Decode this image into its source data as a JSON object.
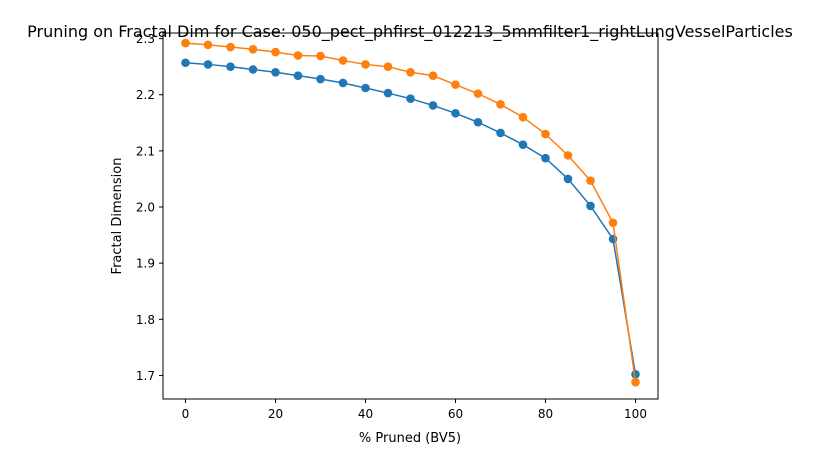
{
  "chart_data": {
    "type": "line",
    "title": "Pruning on Fractal Dim for Case: 050_pect_phfirst_012213_5mmfilter1_rightLungVesselParticles",
    "xlabel": "% Pruned (BV5)",
    "ylabel": "Fractal Dimension",
    "xlim": [
      -5,
      105
    ],
    "ylim": [
      1.658,
      2.31
    ],
    "xticks": [
      0,
      20,
      40,
      60,
      80,
      100
    ],
    "yticks": [
      1.7,
      1.8,
      1.9,
      2.0,
      2.1,
      2.2,
      2.3
    ],
    "x": [
      0,
      5,
      10,
      15,
      20,
      25,
      30,
      35,
      40,
      45,
      50,
      55,
      60,
      65,
      70,
      75,
      80,
      85,
      90,
      95,
      100
    ],
    "series": [
      {
        "color": "#1f77b4",
        "values": [
          2.257,
          2.254,
          2.25,
          2.245,
          2.24,
          2.234,
          2.228,
          2.221,
          2.212,
          2.203,
          2.193,
          2.181,
          2.167,
          2.151,
          2.132,
          2.111,
          2.087,
          2.05,
          2.002,
          1.943,
          1.702
        ]
      },
      {
        "color": "#ff7f0e",
        "values": [
          2.292,
          2.289,
          2.285,
          2.281,
          2.276,
          2.27,
          2.269,
          2.261,
          2.254,
          2.25,
          2.24,
          2.234,
          2.218,
          2.202,
          2.183,
          2.16,
          2.13,
          2.092,
          2.047,
          1.972,
          1.688
        ]
      }
    ],
    "grid": false,
    "legend": "none"
  }
}
